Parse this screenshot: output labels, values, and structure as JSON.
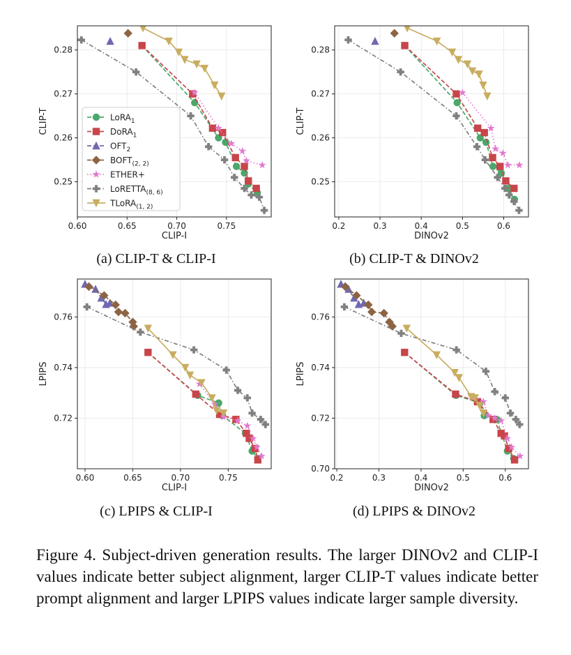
{
  "chart_data": [
    {
      "type": "line",
      "subcaption": "(a) CLIP-T & CLIP-I",
      "xlabel": "CLIP-I",
      "ylabel": "CLIP-T",
      "xlim": [
        0.6,
        0.795
      ],
      "ylim": [
        0.242,
        0.2855
      ],
      "xticks": [
        0.6,
        0.65,
        0.7,
        0.75
      ],
      "xticklabels": [
        "0.60",
        "0.65",
        "0.70",
        "0.75"
      ],
      "yticks": [
        0.25,
        0.26,
        0.27,
        0.28
      ],
      "yticklabels": [
        "0.25",
        "0.26",
        "0.27",
        "0.28"
      ],
      "grid": true,
      "legend": {
        "placement": "lower-left",
        "entries": [
          {
            "label": "LoRA",
            "sub": "1"
          },
          {
            "label": "DoRA",
            "sub": "1"
          },
          {
            "label": "OFT",
            "sub": "2"
          },
          {
            "label": "BOFT",
            "sub": "(2, 2)"
          },
          {
            "label": "ETHER+",
            "sub": ""
          },
          {
            "label": "LoRETTA",
            "sub": "(8, 6)"
          },
          {
            "label": "TLoRA",
            "sub": "(1, 2)"
          }
        ]
      },
      "series": [
        {
          "key": "lora",
          "points": [
            [
              0.665,
              0.281
            ],
            [
              0.718,
              0.268
            ],
            [
              0.742,
              0.26
            ],
            [
              0.749,
              0.259
            ],
            [
              0.76,
              0.2535
            ],
            [
              0.768,
              0.252
            ],
            [
              0.772,
              0.2495
            ],
            [
              0.781,
              0.2475
            ]
          ]
        },
        {
          "key": "dora",
          "points": [
            [
              0.665,
              0.281
            ],
            [
              0.716,
              0.27
            ],
            [
              0.736,
              0.2622
            ],
            [
              0.746,
              0.2612
            ],
            [
              0.759,
              0.2555
            ],
            [
              0.768,
              0.2535
            ],
            [
              0.772,
              0.2502
            ],
            [
              0.78,
              0.2485
            ]
          ]
        },
        {
          "key": "oft",
          "points": [
            [
              0.633,
              0.282
            ]
          ]
        },
        {
          "key": "boft",
          "points": [
            [
              0.651,
              0.2838
            ]
          ]
        },
        {
          "key": "ether",
          "points": [
            [
              0.718,
              0.2703
            ],
            [
              0.742,
              0.2622
            ],
            [
              0.755,
              0.2587
            ],
            [
              0.766,
              0.257
            ],
            [
              0.77,
              0.2548
            ],
            [
              0.786,
              0.2538
            ]
          ]
        },
        {
          "key": "loretta",
          "points": [
            [
              0.604,
              0.2823
            ],
            [
              0.659,
              0.275
            ],
            [
              0.714,
              0.265
            ],
            [
              0.732,
              0.258
            ],
            [
              0.748,
              0.255
            ],
            [
              0.758,
              0.251
            ],
            [
              0.768,
              0.2485
            ],
            [
              0.775,
              0.247
            ],
            [
              0.783,
              0.2465
            ],
            [
              0.788,
              0.2435
            ]
          ]
        },
        {
          "key": "tlora",
          "points": [
            [
              0.666,
              0.285
            ],
            [
              0.692,
              0.282
            ],
            [
              0.702,
              0.2795
            ],
            [
              0.708,
              0.2778
            ],
            [
              0.72,
              0.2768
            ],
            [
              0.728,
              0.2758
            ],
            [
              0.738,
              0.272
            ],
            [
              0.745,
              0.2695
            ]
          ]
        }
      ]
    },
    {
      "type": "line",
      "subcaption": "(b) CLIP-T & DINOv2",
      "xlabel": "DINOv2",
      "ylabel": "CLIP-T",
      "xlim": [
        0.19,
        0.66
      ],
      "ylim": [
        0.242,
        0.2855
      ],
      "xticks": [
        0.2,
        0.3,
        0.4,
        0.5,
        0.6
      ],
      "xticklabels": [
        "0.2",
        "0.3",
        "0.4",
        "0.5",
        "0.6"
      ],
      "yticks": [
        0.25,
        0.26,
        0.27,
        0.28
      ],
      "yticklabels": [
        "0.25",
        "0.26",
        "0.27",
        "0.28"
      ],
      "grid": true,
      "series": [
        {
          "key": "lora",
          "points": [
            [
              0.36,
              0.281
            ],
            [
              0.487,
              0.268
            ],
            [
              0.543,
              0.26
            ],
            [
              0.557,
              0.259
            ],
            [
              0.574,
              0.2535
            ],
            [
              0.594,
              0.252
            ],
            [
              0.612,
              0.2485
            ],
            [
              0.626,
              0.246
            ]
          ]
        },
        {
          "key": "dora",
          "points": [
            [
              0.36,
              0.281
            ],
            [
              0.485,
              0.27
            ],
            [
              0.537,
              0.2622
            ],
            [
              0.553,
              0.2612
            ],
            [
              0.573,
              0.2555
            ],
            [
              0.591,
              0.2535
            ],
            [
              0.605,
              0.2502
            ],
            [
              0.625,
              0.2485
            ]
          ]
        },
        {
          "key": "oft",
          "points": [
            [
              0.288,
              0.282
            ]
          ]
        },
        {
          "key": "boft",
          "points": [
            [
              0.335,
              0.2838
            ]
          ]
        },
        {
          "key": "ether",
          "points": [
            [
              0.5,
              0.2703
            ],
            [
              0.569,
              0.2622
            ],
            [
              0.58,
              0.2575
            ],
            [
              0.598,
              0.2565
            ],
            [
              0.61,
              0.2538
            ],
            [
              0.638,
              0.2538
            ]
          ]
        },
        {
          "key": "loretta",
          "points": [
            [
              0.223,
              0.2823
            ],
            [
              0.35,
              0.275
            ],
            [
              0.485,
              0.265
            ],
            [
              0.535,
              0.258
            ],
            [
              0.555,
              0.255
            ],
            [
              0.585,
              0.251
            ],
            [
              0.603,
              0.2485
            ],
            [
              0.613,
              0.247
            ],
            [
              0.625,
              0.2455
            ],
            [
              0.637,
              0.2435
            ]
          ]
        },
        {
          "key": "tlora",
          "points": [
            [
              0.366,
              0.285
            ],
            [
              0.438,
              0.282
            ],
            [
              0.475,
              0.2795
            ],
            [
              0.49,
              0.2778
            ],
            [
              0.512,
              0.2768
            ],
            [
              0.524,
              0.2752
            ],
            [
              0.54,
              0.2745
            ],
            [
              0.55,
              0.272
            ],
            [
              0.56,
              0.2695
            ]
          ]
        }
      ]
    },
    {
      "type": "line",
      "subcaption": "(c) LPIPS & CLIP-I",
      "xlabel": "CLIP-I",
      "ylabel": "LPIPS",
      "xlim": [
        0.592,
        0.795
      ],
      "ylim": [
        0.7,
        0.775
      ],
      "xticks": [
        0.6,
        0.65,
        0.7,
        0.75
      ],
      "xticklabels": [
        "0.60",
        "0.65",
        "0.70",
        "0.75"
      ],
      "yticks": [
        0.72,
        0.74,
        0.76
      ],
      "yticklabels": [
        "0.72",
        "0.74",
        "0.76"
      ],
      "grid": true,
      "series": [
        {
          "key": "lora",
          "points": [
            [
              0.666,
              0.746
            ],
            [
              0.718,
              0.729
            ],
            [
              0.74,
              0.726
            ],
            [
              0.744,
              0.721
            ],
            [
              0.768,
              0.714
            ],
            [
              0.775,
              0.707
            ],
            [
              0.781,
              0.704
            ]
          ]
        },
        {
          "key": "dora",
          "points": [
            [
              0.666,
              0.746
            ],
            [
              0.716,
              0.7295
            ],
            [
              0.741,
              0.7215
            ],
            [
              0.758,
              0.7195
            ],
            [
              0.769,
              0.714
            ],
            [
              0.772,
              0.712
            ],
            [
              0.778,
              0.708
            ],
            [
              0.781,
              0.7035
            ]
          ]
        },
        {
          "key": "oft",
          "points": [
            [
              0.6,
              0.773
            ],
            [
              0.611,
              0.771
            ],
            [
              0.617,
              0.7675
            ],
            [
              0.622,
              0.765
            ],
            [
              0.626,
              0.7655
            ]
          ]
        },
        {
          "key": "boft",
          "points": [
            [
              0.604,
              0.772
            ],
            [
              0.62,
              0.7685
            ],
            [
              0.632,
              0.7648
            ],
            [
              0.635,
              0.762
            ],
            [
              0.642,
              0.7615
            ],
            [
              0.65,
              0.758
            ],
            [
              0.651,
              0.7563
            ]
          ]
        },
        {
          "key": "ether",
          "points": [
            [
              0.72,
              0.7335
            ],
            [
              0.736,
              0.7255
            ],
            [
              0.745,
              0.7205
            ],
            [
              0.76,
              0.719
            ],
            [
              0.77,
              0.717
            ],
            [
              0.776,
              0.712
            ],
            [
              0.78,
              0.7085
            ],
            [
              0.785,
              0.705
            ]
          ]
        },
        {
          "key": "loretta",
          "points": [
            [
              0.602,
              0.764
            ],
            [
              0.658,
              0.754
            ],
            [
              0.714,
              0.747
            ],
            [
              0.748,
              0.739
            ],
            [
              0.76,
              0.731
            ],
            [
              0.77,
              0.728
            ],
            [
              0.775,
              0.722
            ],
            [
              0.784,
              0.7195
            ],
            [
              0.789,
              0.7175
            ]
          ]
        },
        {
          "key": "tlora",
          "points": [
            [
              0.666,
              0.7555
            ],
            [
              0.692,
              0.745
            ],
            [
              0.705,
              0.74
            ],
            [
              0.71,
              0.737
            ],
            [
              0.722,
              0.734
            ],
            [
              0.733,
              0.728
            ],
            [
              0.738,
              0.723
            ],
            [
              0.745,
              0.722
            ]
          ]
        }
      ]
    },
    {
      "type": "line",
      "subcaption": "(d) LPIPS & DINOv2",
      "xlabel": "DINOv2",
      "ylabel": "LPIPS",
      "xlim": [
        0.195,
        0.655
      ],
      "ylim": [
        0.7,
        0.775
      ],
      "xticks": [
        0.2,
        0.3,
        0.4,
        0.5,
        0.6
      ],
      "xticklabels": [
        "0.2",
        "0.3",
        "0.4",
        "0.5",
        "0.6"
      ],
      "yticks": [
        0.7,
        0.72,
        0.74,
        0.76
      ],
      "yticklabels": [
        "0.70",
        "0.72",
        "0.74",
        "0.76"
      ],
      "grid": true,
      "series": [
        {
          "key": "lora",
          "points": [
            [
              0.361,
              0.746
            ],
            [
              0.483,
              0.729
            ],
            [
              0.54,
              0.726
            ],
            [
              0.55,
              0.721
            ],
            [
              0.58,
              0.7195
            ],
            [
              0.605,
              0.707
            ],
            [
              0.62,
              0.704
            ]
          ]
        },
        {
          "key": "dora",
          "points": [
            [
              0.361,
              0.746
            ],
            [
              0.482,
              0.7295
            ],
            [
              0.534,
              0.7265
            ],
            [
              0.571,
              0.7195
            ],
            [
              0.59,
              0.714
            ],
            [
              0.598,
              0.713
            ],
            [
              0.608,
              0.708
            ],
            [
              0.622,
              0.7035
            ]
          ]
        },
        {
          "key": "oft",
          "points": [
            [
              0.21,
              0.773
            ],
            [
              0.228,
              0.771
            ],
            [
              0.241,
              0.7675
            ],
            [
              0.252,
              0.765
            ],
            [
              0.264,
              0.7655
            ]
          ]
        },
        {
          "key": "boft",
          "points": [
            [
              0.22,
              0.772
            ],
            [
              0.247,
              0.7685
            ],
            [
              0.275,
              0.7648
            ],
            [
              0.283,
              0.762
            ],
            [
              0.312,
              0.7615
            ],
            [
              0.325,
              0.758
            ],
            [
              0.332,
              0.7563
            ]
          ]
        },
        {
          "key": "ether",
          "points": [
            [
              0.52,
              0.7285
            ],
            [
              0.548,
              0.7265
            ],
            [
              0.56,
              0.721
            ],
            [
              0.575,
              0.72
            ],
            [
              0.59,
              0.719
            ],
            [
              0.605,
              0.712
            ],
            [
              0.615,
              0.7085
            ],
            [
              0.635,
              0.705
            ]
          ]
        },
        {
          "key": "loretta",
          "points": [
            [
              0.218,
              0.764
            ],
            [
              0.353,
              0.7535
            ],
            [
              0.484,
              0.747
            ],
            [
              0.554,
              0.7385
            ],
            [
              0.575,
              0.7305
            ],
            [
              0.6,
              0.728
            ],
            [
              0.612,
              0.722
            ],
            [
              0.625,
              0.7195
            ],
            [
              0.634,
              0.7175
            ]
          ]
        },
        {
          "key": "tlora",
          "points": [
            [
              0.366,
              0.7555
            ],
            [
              0.437,
              0.745
            ],
            [
              0.48,
              0.738
            ],
            [
              0.49,
              0.736
            ],
            [
              0.519,
              0.7285
            ],
            [
              0.528,
              0.728
            ],
            [
              0.539,
              0.725
            ],
            [
              0.548,
              0.722
            ]
          ]
        }
      ]
    }
  ],
  "styles": {
    "lora": {
      "color": "#4aa86a",
      "marker": "circle",
      "dash": "6,3"
    },
    "dora": {
      "color": "#c8454a",
      "marker": "square",
      "dash": "6,3"
    },
    "oft": {
      "color": "#7068b0",
      "marker": "triangle",
      "dash": "6,3"
    },
    "boft": {
      "color": "#8c6444",
      "marker": "diamond",
      "dash": "6,3"
    },
    "ether": {
      "color": "#e27ad0",
      "marker": "star",
      "dash": "1.5,3"
    },
    "loretta": {
      "color": "#808080",
      "marker": "plus",
      "dash": "6,3,1.5,3"
    },
    "tlora": {
      "color": "#c8ad60",
      "marker": "tri-down",
      "dash": ""
    }
  },
  "figure_caption": "Figure 4.  Subject-driven generation results.  The larger DINOv2 and CLIP-I values indicate better subject alignment, larger CLIP-T values indicate better prompt alignment and larger LPIPS values indicate larger sample diversity."
}
